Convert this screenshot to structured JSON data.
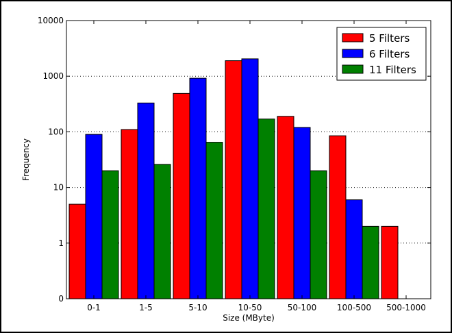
{
  "chart_data": {
    "type": "bar",
    "title": "",
    "xlabel": "Size (MByte)",
    "ylabel": "Frequency",
    "yscale": "log",
    "ylim": [
      0.1,
      10000
    ],
    "yticks": [
      0.1,
      1,
      10,
      100,
      1000,
      10000
    ],
    "ytick_labels": [
      "0",
      "1",
      "10",
      "100",
      "1000",
      "10000"
    ],
    "grid": true,
    "legend_position": "top-right",
    "categories": [
      "0-1",
      "1-5",
      "5-10",
      "10-50",
      "50-100",
      "100-500",
      "500-1000"
    ],
    "series": [
      {
        "name": "5 Filters",
        "color": "#ff0000",
        "values": [
          5,
          110,
          490,
          1900,
          190,
          85,
          2
        ]
      },
      {
        "name": "6 Filters",
        "color": "#0000ff",
        "values": [
          90,
          330,
          920,
          2050,
          120,
          6,
          null
        ]
      },
      {
        "name": "11 Filters",
        "color": "#008000",
        "values": [
          20,
          26,
          65,
          170,
          20,
          2,
          null
        ]
      }
    ]
  }
}
